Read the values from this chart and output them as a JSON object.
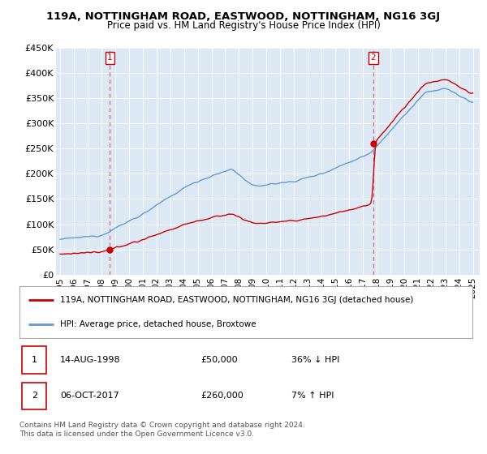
{
  "title": "119A, NOTTINGHAM ROAD, EASTWOOD, NOTTINGHAM, NG16 3GJ",
  "subtitle": "Price paid vs. HM Land Registry's House Price Index (HPI)",
  "legend_line1": "119A, NOTTINGHAM ROAD, EASTWOOD, NOTTINGHAM, NG16 3GJ (detached house)",
  "legend_line2": "HPI: Average price, detached house, Broxtowe",
  "sale1_label": "1",
  "sale1_date": "14-AUG-1998",
  "sale1_price": 50000,
  "sale1_hpi_pct": "36% ↓ HPI",
  "sale2_label": "2",
  "sale2_date": "06-OCT-2017",
  "sale2_price": 260000,
  "sale2_hpi_pct": "7% ↑ HPI",
  "sale1_year": 1998.62,
  "sale2_year": 2017.76,
  "property_color": "#cc0000",
  "hpi_color": "#6699cc",
  "plot_bg_color": "#dce9f5",
  "ylim": [
    0,
    450000
  ],
  "yticks": [
    0,
    50000,
    100000,
    150000,
    200000,
    250000,
    300000,
    350000,
    400000,
    450000
  ],
  "ytick_labels": [
    "£0",
    "£50K",
    "£100K",
    "£150K",
    "£200K",
    "£250K",
    "£300K",
    "£350K",
    "£400K",
    "£450K"
  ],
  "xmin": 1994.7,
  "xmax": 2025.5,
  "footer1": "Contains HM Land Registry data © Crown copyright and database right 2024.",
  "footer2": "This data is licensed under the Open Government Licence v3.0.",
  "background_color": "#ffffff",
  "grid_color": "#ffffff",
  "sale_marker_color": "#cc0000",
  "sale_number_box_color": "#cc0000",
  "dashed_line_color": "#dd6666"
}
